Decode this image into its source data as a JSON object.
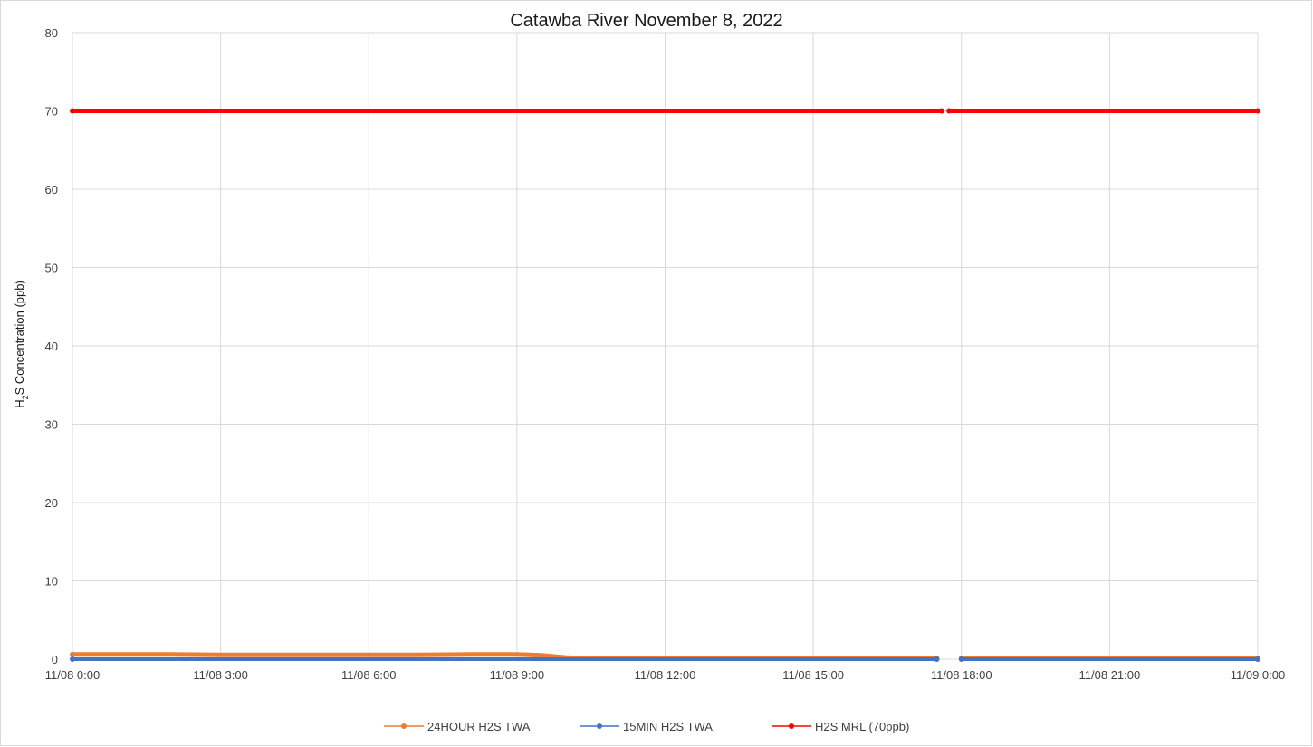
{
  "chart_data": {
    "type": "line",
    "title": "Catawba River November 8, 2022",
    "ylabel_main": "H",
    "ylabel_sub": "2",
    "ylabel_rest": "S Concentration (ppb)",
    "xlabel": "",
    "ylim": [
      0,
      80
    ],
    "yticks": [
      "0",
      "10",
      "20",
      "30",
      "40",
      "50",
      "60",
      "70",
      "80"
    ],
    "xlim_hours": [
      0,
      24
    ],
    "xticks": [
      "11/08 0:00",
      "11/08 3:00",
      "11/08 6:00",
      "11/08 9:00",
      "11/08 12:00",
      "11/08 15:00",
      "11/08 18:00",
      "11/08 21:00",
      "11/09 0:00"
    ],
    "grid": true,
    "legend_position": "bottom",
    "series": [
      {
        "name": "24HOUR H2S TWA",
        "color": "#ED7D31",
        "x": [
          0,
          1,
          2,
          3,
          4,
          5,
          6,
          7,
          8,
          9,
          9.5,
          10,
          10.5,
          11,
          12,
          13,
          14,
          15,
          16,
          16.6,
          16.65,
          17.0,
          17.5,
          17.7,
          18,
          19,
          20,
          21,
          22,
          23,
          24
        ],
        "y": [
          0.6,
          0.6,
          0.6,
          0.55,
          0.55,
          0.55,
          0.55,
          0.55,
          0.6,
          0.6,
          0.5,
          0.2,
          0.1,
          0.1,
          0.1,
          0.1,
          0.1,
          0.1,
          0.1,
          0.1,
          0.1,
          0.1,
          0.1,
          null,
          0.1,
          0.1,
          0.1,
          0.1,
          0.1,
          0.1,
          0.1
        ]
      },
      {
        "name": "15MIN H2S TWA",
        "color": "#4472C4",
        "x": [
          0,
          3,
          6,
          9,
          12,
          15,
          17.5,
          17.7,
          18,
          21,
          24
        ],
        "y": [
          0,
          0,
          0,
          0,
          0,
          0,
          0,
          null,
          0,
          0,
          0
        ]
      },
      {
        "name": "H2S MRL (70ppb)",
        "color": "#FF0000",
        "x": [
          0,
          3,
          6,
          9,
          12,
          15,
          17.6,
          17.7,
          17.75,
          21,
          24
        ],
        "y": [
          70,
          70,
          70,
          70,
          70,
          70,
          70,
          null,
          70,
          70,
          70
        ]
      }
    ]
  }
}
